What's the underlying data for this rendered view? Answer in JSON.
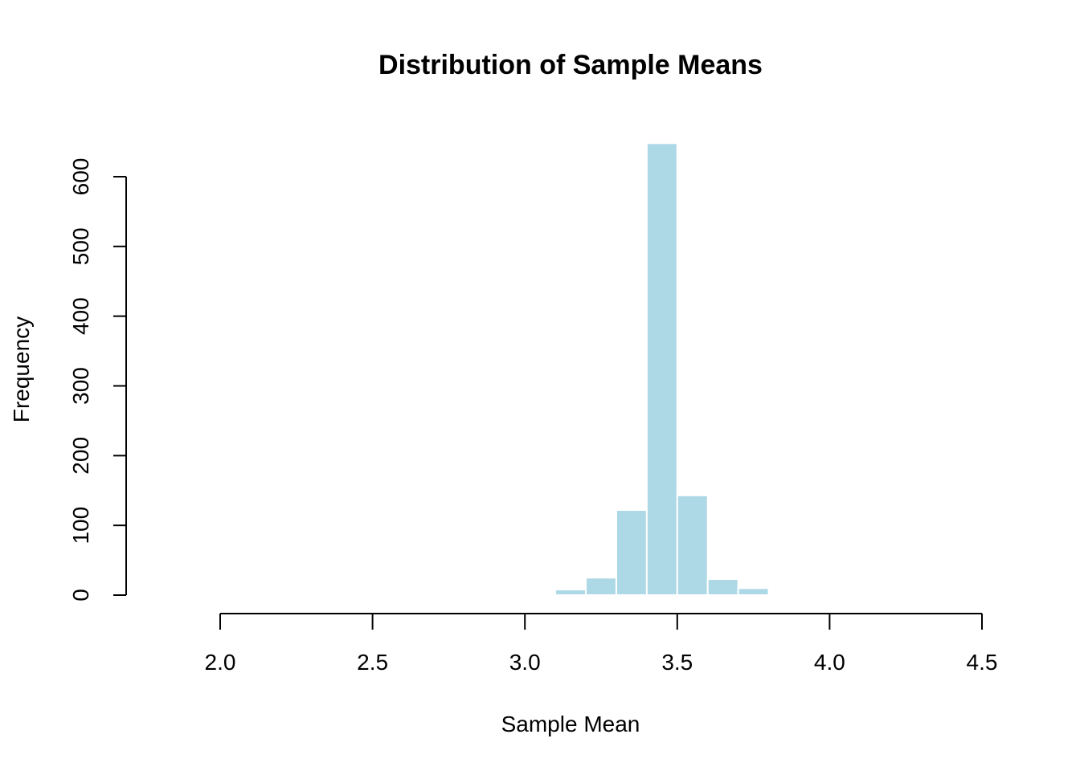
{
  "chart_data": {
    "type": "bar",
    "title": "Distribution of Sample Means",
    "xlabel": "Sample Mean",
    "ylabel": "Frequency",
    "bar_color": "#ADD8E6",
    "bar_border_color": "#ffffff",
    "bins": [
      {
        "x0": 3.1,
        "x1": 3.2,
        "count": 8
      },
      {
        "x0": 3.2,
        "x1": 3.3,
        "count": 25
      },
      {
        "x0": 3.3,
        "x1": 3.4,
        "count": 122
      },
      {
        "x0": 3.4,
        "x1": 3.5,
        "count": 648
      },
      {
        "x0": 3.5,
        "x1": 3.6,
        "count": 143
      },
      {
        "x0": 3.6,
        "x1": 3.7,
        "count": 23
      },
      {
        "x0": 3.7,
        "x1": 3.8,
        "count": 10
      }
    ],
    "xlim": [
      2.0,
      4.5
    ],
    "ylim": [
      0,
      648
    ],
    "x_ticks": [
      "2.0",
      "2.5",
      "3.0",
      "3.5",
      "4.0",
      "4.5"
    ],
    "y_ticks": [
      "0",
      "100",
      "200",
      "300",
      "400",
      "500",
      "600"
    ],
    "grid": false,
    "legend": "none"
  }
}
